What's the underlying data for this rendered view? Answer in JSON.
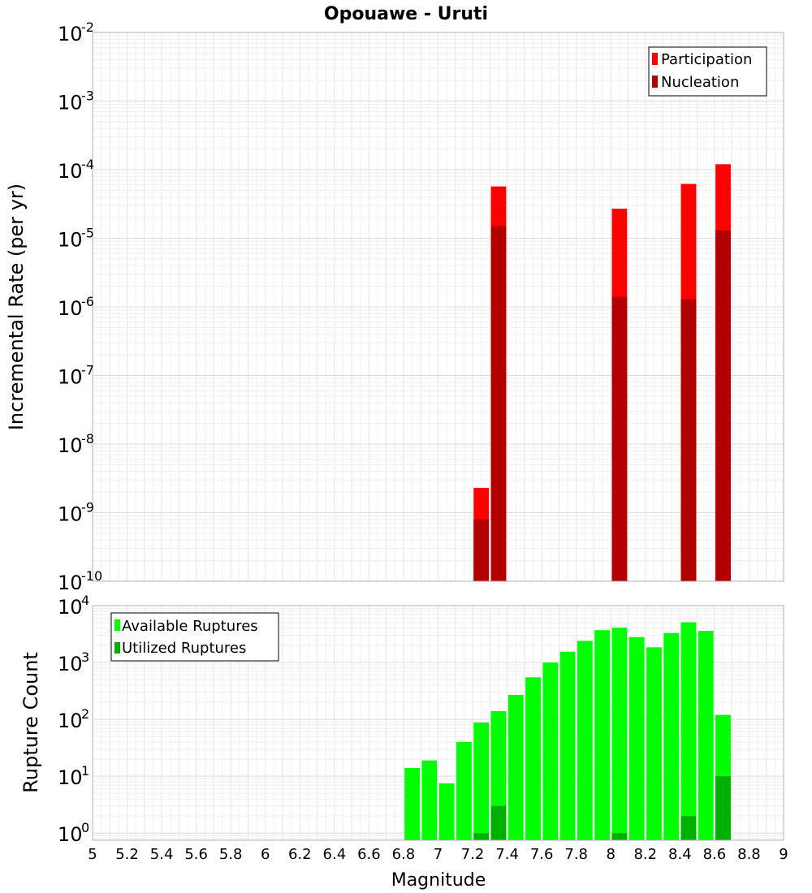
{
  "chart_data": [
    {
      "type": "bar",
      "title": "Opouawe - Uruti",
      "ylabel": "Incremental Rate (per yr)",
      "xlabel": "",
      "yscale": "log",
      "ylim": [
        1e-10,
        0.01
      ],
      "xlim": [
        5,
        9
      ],
      "grid": true,
      "legend_position": "top-right",
      "ytick_labels": [
        {
          "base": "10",
          "exp": "-10"
        },
        {
          "base": "10",
          "exp": "-9"
        },
        {
          "base": "10",
          "exp": "-8"
        },
        {
          "base": "10",
          "exp": "-7"
        },
        {
          "base": "10",
          "exp": "-6"
        },
        {
          "base": "10",
          "exp": "-5"
        },
        {
          "base": "10",
          "exp": "-4"
        },
        {
          "base": "10",
          "exp": "-3"
        },
        {
          "base": "10",
          "exp": "-2"
        }
      ],
      "series": [
        {
          "name": "Participation",
          "color": "#ff0000",
          "x": [
            7.25,
            7.35,
            8.05,
            8.45,
            8.65
          ],
          "values": [
            2.3e-09,
            5.7e-05,
            2.7e-05,
            6.2e-05,
            0.00012
          ]
        },
        {
          "name": "Nucleation",
          "color": "#b20000",
          "x": [
            7.25,
            7.35,
            8.05,
            8.45,
            8.65
          ],
          "values": [
            8e-10,
            1.5e-05,
            1.4e-06,
            1.3e-06,
            1.3e-05
          ]
        }
      ]
    },
    {
      "type": "bar",
      "title": "",
      "ylabel": "Rupture Count",
      "xlabel": "Magnitude",
      "yscale": "log",
      "ylim": [
        0.75,
        10000
      ],
      "xlim": [
        5,
        9
      ],
      "grid": true,
      "legend_position": "top-left",
      "xtick_labels": [
        "5",
        "5.2",
        "5.4",
        "5.6",
        "5.8",
        "6",
        "6.2",
        "6.4",
        "6.6",
        "6.8",
        "7",
        "7.2",
        "7.4",
        "7.6",
        "7.8",
        "8",
        "8.2",
        "8.4",
        "8.6",
        "8.8",
        "9"
      ],
      "ytick_labels": [
        {
          "base": "10",
          "exp": "0"
        },
        {
          "base": "10",
          "exp": "1"
        },
        {
          "base": "10",
          "exp": "2"
        },
        {
          "base": "10",
          "exp": "3"
        },
        {
          "base": "10",
          "exp": "4"
        }
      ],
      "series": [
        {
          "name": "Available Ruptures",
          "color": "#00ff00",
          "x": [
            6.85,
            6.95,
            7.05,
            7.15,
            7.25,
            7.35,
            7.45,
            7.55,
            7.65,
            7.75,
            7.85,
            7.95,
            8.05,
            8.15,
            8.25,
            8.35,
            8.45,
            8.55,
            8.65
          ],
          "values": [
            14,
            19,
            7.5,
            40,
            88,
            140,
            270,
            550,
            1000,
            1550,
            2400,
            3700,
            4100,
            2800,
            1850,
            3300,
            5100,
            3600,
            120
          ]
        },
        {
          "name": "Utilized Ruptures",
          "color": "#00b000",
          "x": [
            7.25,
            7.35,
            8.05,
            8.45,
            8.65
          ],
          "values": [
            1,
            3,
            1,
            2,
            10
          ]
        }
      ]
    }
  ]
}
